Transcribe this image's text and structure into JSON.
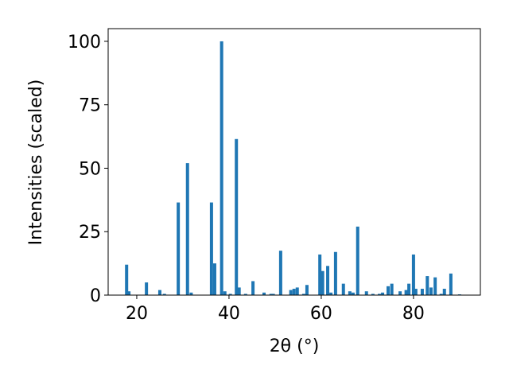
{
  "chart_data": {
    "type": "bar",
    "x_label": "2θ (°)",
    "y_label": "Intensities (scaled)",
    "x": [
      17.8,
      18.3,
      22.1,
      25.0,
      26.0,
      29.0,
      31.0,
      31.8,
      36.2,
      36.9,
      38.4,
      39.1,
      40.3,
      41.6,
      42.2,
      43.6,
      45.2,
      47.6,
      49.1,
      49.6,
      51.2,
      53.4,
      54.1,
      54.8,
      56.2,
      56.9,
      59.7,
      60.3,
      61.4,
      62.1,
      63.1,
      64.8,
      66.2,
      66.9,
      67.9,
      69.8,
      71.2,
      72.6,
      73.3,
      74.5,
      75.3,
      77.1,
      78.4,
      79.0,
      80.0,
      80.5,
      81.9,
      83.0,
      83.8,
      84.7,
      86.0,
      86.7,
      88.1,
      90.0
    ],
    "values": [
      12,
      1.5,
      5,
      2,
      0.5,
      36.5,
      52,
      1,
      36.5,
      12.5,
      100,
      1.5,
      0.5,
      61.5,
      3,
      0.5,
      5.5,
      1,
      0.5,
      0.5,
      17.5,
      2,
      2.5,
      3,
      0.5,
      4,
      16,
      9.5,
      11.5,
      1,
      17,
      4.5,
      1.5,
      1,
      27,
      1.5,
      0.5,
      0.5,
      1,
      3.5,
      4.5,
      1.5,
      2,
      4.5,
      16,
      2.5,
      2.5,
      7.5,
      3,
      7,
      0.5,
      2.5,
      8.5,
      0.3
    ],
    "color": "#1f77b4",
    "xlim": [
      13.8,
      94.5
    ],
    "ylim": [
      0,
      105
    ],
    "xticks": [
      20,
      40,
      60,
      80
    ],
    "yticks": [
      0,
      25,
      50,
      75,
      100
    ]
  }
}
